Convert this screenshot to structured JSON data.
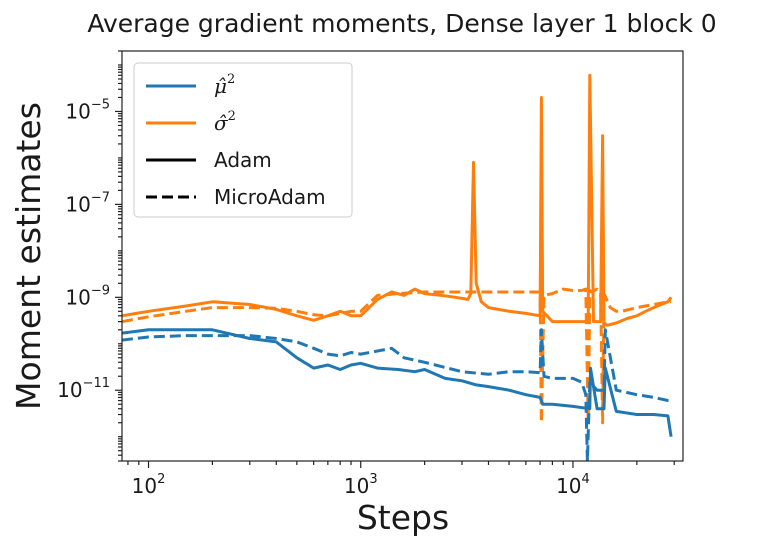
{
  "chart_data": {
    "type": "line",
    "title": "Average gradient moments, Dense layer 1 block 0",
    "xlabel": "Steps",
    "ylabel": "Moment estimates",
    "xscale": "log",
    "yscale": "log",
    "xlim": [
      75,
      33000
    ],
    "ylim": [
      3e-13,
      0.0002
    ],
    "grid": false,
    "legend_position": "top-left",
    "xticks": [
      {
        "value": 100,
        "base": "10",
        "exp": "2"
      },
      {
        "value": 1000,
        "base": "10",
        "exp": "3"
      },
      {
        "value": 10000,
        "base": "10",
        "exp": "4"
      }
    ],
    "yticks": [
      {
        "value": 1e-11,
        "base": "10",
        "exp": "−11"
      },
      {
        "value": 1e-09,
        "base": "10",
        "exp": "−9"
      },
      {
        "value": 1e-07,
        "base": "10",
        "exp": "−7"
      },
      {
        "value": 1e-05,
        "base": "10",
        "exp": "−5"
      }
    ],
    "legend": [
      {
        "label": "μ̂",
        "sup": "2",
        "color": "#1f77b4",
        "dash": false
      },
      {
        "label": "σ̂",
        "sup": "2",
        "color": "#ff7f0e",
        "dash": false
      },
      {
        "label": "Adam",
        "color": "#000000",
        "dash": false
      },
      {
        "label": "MicroAdam",
        "color": "#000000",
        "dash": true
      }
    ],
    "series": [
      {
        "name": "σ̂² Adam",
        "color": "#ff7f0e",
        "dash": false,
        "x": [
          75,
          100,
          150,
          200,
          300,
          400,
          500,
          600,
          700,
          800,
          900,
          1000,
          1200,
          1400,
          1600,
          1800,
          2000,
          2400,
          2800,
          3200,
          3300,
          3400,
          3500,
          3700,
          4000,
          5000,
          6000,
          7000,
          7100,
          7200,
          8000,
          9000,
          10000,
          11000,
          11500,
          11800,
          12000,
          12500,
          13000,
          13500,
          13800,
          14000,
          14500,
          16000,
          18000,
          20000,
          22000,
          24000,
          26000,
          28000,
          29000
        ],
        "y": [
          4e-10,
          5e-10,
          6.5e-10,
          8e-10,
          7e-10,
          5.5e-10,
          4e-10,
          3.2e-10,
          4e-10,
          5e-10,
          4e-10,
          4e-10,
          9e-10,
          1.3e-09,
          1.1e-09,
          1.5e-09,
          1.2e-09,
          1.1e-09,
          1e-09,
          9e-10,
          1.2e-09,
          8e-07,
          2e-09,
          8e-10,
          6e-10,
          5e-10,
          4.5e-10,
          4e-10,
          2e-05,
          5e-10,
          3e-10,
          3e-10,
          3e-10,
          3e-10,
          3e-10,
          3e-10,
          6e-05,
          3e-10,
          3e-10,
          3e-10,
          3e-06,
          2.8e-10,
          2.5e-10,
          2.8e-10,
          3.5e-10,
          4e-10,
          5e-10,
          6e-10,
          7e-10,
          8e-10,
          1e-09
        ]
      },
      {
        "name": "σ̂² MicroAdam",
        "color": "#ff7f0e",
        "dash": true,
        "x": [
          75,
          100,
          150,
          200,
          300,
          400,
          500,
          600,
          700,
          800,
          900,
          1000,
          1200,
          1500,
          2000,
          3000,
          4000,
          5000,
          6000,
          7000,
          7100,
          7300,
          8000,
          9000,
          10000,
          11000,
          11500,
          11800,
          12000,
          12200,
          13000,
          13500,
          13800,
          14000,
          15000,
          16000,
          17000,
          20000,
          24000,
          28000,
          29000
        ],
        "y": [
          3e-10,
          3.8e-10,
          5e-10,
          6e-10,
          6e-10,
          5.8e-10,
          5e-10,
          4.2e-10,
          4e-10,
          4.5e-10,
          5e-10,
          5e-10,
          1.1e-09,
          1.2e-09,
          1.3e-09,
          1.3e-09,
          1.3e-09,
          1.3e-09,
          1.3e-09,
          1.3e-09,
          2e-12,
          1.1e-09,
          1.2e-09,
          1.5e-09,
          1.4e-09,
          1.4e-09,
          1.5e-09,
          2e-12,
          1.4e-09,
          1.3e-09,
          1.5e-09,
          1.3e-09,
          2e-12,
          1.2e-09,
          6e-10,
          5e-10,
          5e-10,
          6e-10,
          7e-10,
          8e-10,
          8e-10
        ]
      },
      {
        "name": "μ̂² Adam",
        "color": "#1f77b4",
        "dash": false,
        "x": [
          75,
          100,
          150,
          200,
          300,
          400,
          500,
          600,
          700,
          800,
          900,
          1000,
          1200,
          1500,
          1800,
          2000,
          2500,
          3000,
          3500,
          4000,
          5000,
          6000,
          7000,
          7200,
          8000,
          10000,
          12000,
          12100,
          13000,
          14000,
          14200,
          16000,
          20000,
          24000,
          28000,
          29000
        ],
        "y": [
          1.7e-10,
          2e-10,
          2e-10,
          2e-10,
          1.3e-10,
          1.1e-10,
          5e-11,
          3e-11,
          3.5e-11,
          2.8e-11,
          3.5e-11,
          3.8e-11,
          3e-11,
          2.8e-11,
          2.5e-11,
          2.8e-11,
          1.8e-11,
          1.6e-11,
          1.3e-11,
          1.2e-11,
          1e-11,
          8e-12,
          7e-12,
          5e-12,
          5e-12,
          4.5e-12,
          4e-12,
          3e-11,
          4e-12,
          4e-12,
          3e-11,
          3.5e-12,
          3e-12,
          3e-12,
          2.8e-12,
          1e-12
        ]
      },
      {
        "name": "μ̂² MicroAdam",
        "color": "#1f77b4",
        "dash": true,
        "x": [
          75,
          100,
          150,
          200,
          300,
          400,
          500,
          600,
          700,
          800,
          900,
          1000,
          1200,
          1400,
          1600,
          2000,
          3000,
          4000,
          5000,
          6000,
          7000,
          7100,
          7300,
          8000,
          10000,
          11000,
          11500,
          11700,
          12000,
          13000,
          14000,
          14200,
          16000,
          20000,
          24000,
          28000,
          29000
        ],
        "y": [
          1.2e-10,
          1.4e-10,
          1.5e-10,
          1.5e-10,
          1.5e-10,
          1.3e-10,
          1.1e-10,
          8e-11,
          6e-11,
          5.5e-11,
          6.5e-11,
          6e-11,
          7e-11,
          8e-11,
          5e-11,
          4e-11,
          2.5e-11,
          2.2e-11,
          2.5e-11,
          2.5e-11,
          2.4e-11,
          2e-10,
          2e-11,
          1.8e-11,
          1.8e-11,
          1.5e-11,
          8e-12,
          3e-13,
          1.5e-11,
          1e-11,
          1e-11,
          2e-10,
          1e-11,
          8e-12,
          7e-12,
          6e-12,
          6e-12
        ]
      }
    ]
  }
}
